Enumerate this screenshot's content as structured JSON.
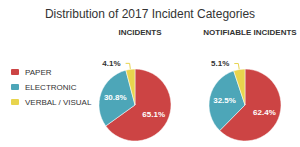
{
  "title": "Distribution of 2017 Incident Categories",
  "legend": "left",
  "chart_data": [
    {
      "type": "pie",
      "title": "INCIDENTS",
      "categories": [
        "PAPER",
        "ELECTRONIC",
        "VERBAL / VISUAL"
      ],
      "values": [
        65.1,
        30.8,
        4.1
      ],
      "value_labels": [
        "65.1%",
        "30.8%",
        "4.1%"
      ],
      "colors": [
        "#cc4444",
        "#4da6b8",
        "#e8d44d"
      ],
      "data_labels": true
    },
    {
      "type": "pie",
      "title": "NOTIFIABLE INCIDENTS",
      "categories": [
        "PAPER",
        "ELECTRONIC",
        "VERBAL / VISUAL"
      ],
      "values": [
        62.4,
        32.5,
        5.1
      ],
      "value_labels": [
        "62.4%",
        "32.5%",
        "5.1%"
      ],
      "colors": [
        "#cc4444",
        "#4da6b8",
        "#e8d44d"
      ],
      "data_labels": true
    }
  ]
}
